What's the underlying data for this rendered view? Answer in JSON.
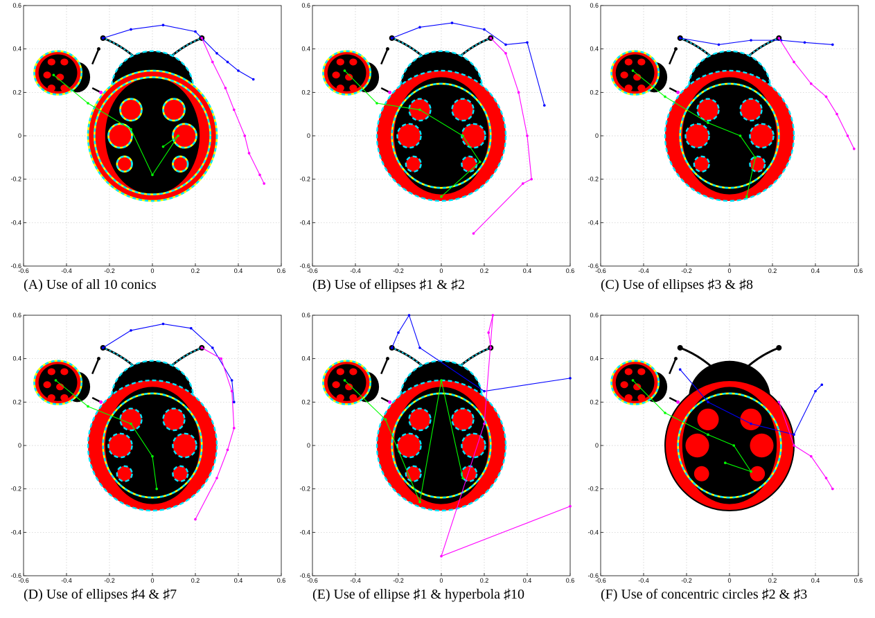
{
  "figure": {
    "panels": [
      {
        "caption": "(A) Use of all 10 conics",
        "variant": "A"
      },
      {
        "caption": "(B) Use of ellipses ♯1 & ♯2",
        "variant": "B"
      },
      {
        "caption": "(C) Use of ellipses ♯3 & ♯8",
        "variant": "C"
      },
      {
        "caption": "(D) Use of ellipses ♯4 & ♯7",
        "variant": "D"
      },
      {
        "caption": "(E) Use of ellipse ♯1 & hyperbola ♯10",
        "variant": "E"
      },
      {
        "caption": "(F) Use of concentric circles ♯2 & ♯3",
        "variant": "F"
      }
    ],
    "colors": {
      "body": "#000000",
      "shell": "#ff0000",
      "conic_yellow": "#ffff00",
      "conic_cyan": "#00e5ff",
      "traj_blue": "#0000ff",
      "traj_magenta": "#ff00ff",
      "traj_green": "#00ff00",
      "grid": "#c8c8c8"
    }
  },
  "chart_data": [
    {
      "type": "scatter",
      "title": "",
      "xlim": [
        -0.6,
        0.6
      ],
      "ylim": [
        -0.6,
        0.6
      ],
      "xticks": [
        "-0.6",
        "-0.4",
        "-0.2",
        "0",
        "0.2",
        "0.4",
        "0.6"
      ],
      "yticks": [
        "-0.6",
        "-0.4",
        "-0.2",
        "0",
        "0.2",
        "0.4",
        "0.6"
      ],
      "grid": true,
      "series": [
        {
          "color": "#0000ff",
          "x": [
            -0.23,
            -0.1,
            0.05,
            0.2,
            0.3,
            0.35,
            0.4,
            0.47
          ],
          "y": [
            0.45,
            0.49,
            0.51,
            0.48,
            0.38,
            0.34,
            0.3,
            0.26
          ]
        },
        {
          "color": "#ff00ff",
          "x": [
            0.23,
            0.28,
            0.34,
            0.38,
            0.43,
            0.45,
            0.5,
            0.52
          ],
          "y": [
            0.45,
            0.34,
            0.22,
            0.12,
            0.0,
            -0.08,
            -0.18,
            -0.22
          ]
        },
        {
          "color": "#00ff00",
          "x": [
            -0.46,
            -0.3,
            -0.1,
            0.0,
            0.12,
            0.05
          ],
          "y": [
            0.28,
            0.15,
            0.03,
            -0.18,
            0.0,
            -0.05
          ]
        }
      ]
    },
    {
      "type": "scatter",
      "title": "",
      "xlim": [
        -0.6,
        0.6
      ],
      "ylim": [
        -0.6,
        0.6
      ],
      "xticks": [
        "-0.6",
        "-0.4",
        "-0.2",
        "0",
        "0.2",
        "0.4",
        "0.6"
      ],
      "yticks": [
        "-0.6",
        "-0.4",
        "-0.2",
        "0",
        "0.2",
        "0.4",
        "0.6"
      ],
      "grid": true,
      "series": [
        {
          "color": "#0000ff",
          "x": [
            -0.23,
            -0.1,
            0.05,
            0.2,
            0.3,
            0.4,
            0.48
          ],
          "y": [
            0.45,
            0.5,
            0.52,
            0.49,
            0.42,
            0.43,
            0.14
          ]
        },
        {
          "color": "#ff00ff",
          "x": [
            0.23,
            0.3,
            0.36,
            0.4,
            0.42,
            0.38,
            0.15
          ],
          "y": [
            0.45,
            0.38,
            0.2,
            0.0,
            -0.2,
            -0.22,
            -0.45
          ]
        },
        {
          "color": "#00ff00",
          "x": [
            -0.45,
            -0.3,
            -0.1,
            0.1,
            0.18,
            0.0
          ],
          "y": [
            0.3,
            0.15,
            0.12,
            0.0,
            -0.12,
            -0.28
          ]
        }
      ]
    },
    {
      "type": "scatter",
      "title": "",
      "xlim": [
        -0.6,
        0.6
      ],
      "ylim": [
        -0.6,
        0.6
      ],
      "xticks": [
        "-0.6",
        "-0.4",
        "-0.2",
        "0",
        "0.2",
        "0.4",
        "0.6"
      ],
      "yticks": [
        "-0.6",
        "-0.4",
        "-0.2",
        "0",
        "0.2",
        "0.4",
        "0.6"
      ],
      "grid": true,
      "series": [
        {
          "color": "#0000ff",
          "x": [
            -0.23,
            -0.05,
            0.1,
            0.24,
            0.35,
            0.48
          ],
          "y": [
            0.45,
            0.42,
            0.44,
            0.44,
            0.43,
            0.42
          ]
        },
        {
          "color": "#ff00ff",
          "x": [
            0.23,
            0.3,
            0.38,
            0.45,
            0.5,
            0.55,
            0.58
          ],
          "y": [
            0.45,
            0.34,
            0.24,
            0.18,
            0.1,
            0.0,
            -0.06
          ]
        },
        {
          "color": "#00ff00",
          "x": [
            -0.45,
            -0.3,
            -0.1,
            0.05,
            0.12,
            0.08
          ],
          "y": [
            0.3,
            0.18,
            0.06,
            0.0,
            -0.1,
            -0.28
          ]
        }
      ]
    },
    {
      "type": "scatter",
      "title": "",
      "xlim": [
        -0.6,
        0.6
      ],
      "ylim": [
        -0.6,
        0.6
      ],
      "xticks": [
        "-0.6",
        "-0.4",
        "-0.2",
        "0",
        "0.2",
        "0.4",
        "0.6"
      ],
      "yticks": [
        "-0.6",
        "-0.4",
        "-0.2",
        "0",
        "0.2",
        "0.4",
        "0.6"
      ],
      "grid": true,
      "series": [
        {
          "color": "#0000ff",
          "x": [
            -0.23,
            -0.1,
            0.05,
            0.18,
            0.28,
            0.37,
            0.38
          ],
          "y": [
            0.45,
            0.53,
            0.56,
            0.54,
            0.45,
            0.3,
            0.2
          ]
        },
        {
          "color": "#ff00ff",
          "x": [
            0.23,
            0.32,
            0.37,
            0.38,
            0.35,
            0.3,
            0.2
          ],
          "y": [
            0.45,
            0.4,
            0.25,
            0.08,
            -0.02,
            -0.15,
            -0.34
          ]
        },
        {
          "color": "#00ff00",
          "x": [
            -0.45,
            -0.3,
            -0.1,
            0.0,
            0.02
          ],
          "y": [
            0.3,
            0.18,
            0.1,
            -0.05,
            -0.2
          ]
        }
      ]
    },
    {
      "type": "scatter",
      "title": "",
      "xlim": [
        -0.6,
        0.6
      ],
      "ylim": [
        -0.6,
        0.6
      ],
      "xticks": [
        "-0.6",
        "-0.4",
        "-0.2",
        "0",
        "0.2",
        "0.4",
        "0.6"
      ],
      "yticks": [
        "-0.6",
        "-0.4",
        "-0.2",
        "0",
        "0.2",
        "0.4",
        "0.6"
      ],
      "grid": true,
      "series": [
        {
          "color": "#0000ff",
          "x": [
            -0.23,
            -0.2,
            -0.15,
            -0.1,
            0.2,
            0.6
          ],
          "y": [
            0.45,
            0.52,
            0.6,
            0.45,
            0.25,
            0.31
          ]
        },
        {
          "color": "#ff00ff",
          "x": [
            0.23,
            0.22,
            0.24,
            0.2,
            0.0,
            0.6
          ],
          "y": [
            0.45,
            0.52,
            0.6,
            0.1,
            -0.51,
            -0.28
          ]
        },
        {
          "color": "#00ff00",
          "x": [
            -0.45,
            -0.26,
            -0.1,
            0.0,
            0.1
          ],
          "y": [
            0.3,
            0.12,
            -0.26,
            0.3,
            -0.15
          ]
        }
      ]
    },
    {
      "type": "scatter",
      "title": "",
      "xlim": [
        -0.6,
        0.6
      ],
      "ylim": [
        -0.6,
        0.6
      ],
      "xticks": [
        "-0.6",
        "-0.4",
        "-0.2",
        "0",
        "0.2",
        "0.4",
        "0.6"
      ],
      "yticks": [
        "-0.6",
        "-0.4",
        "-0.2",
        "0",
        "0.2",
        "0.4",
        "0.6"
      ],
      "grid": true,
      "series": [
        {
          "color": "#0000ff",
          "x": [
            -0.23,
            -0.1,
            0.1,
            0.3,
            0.4,
            0.43
          ],
          "y": [
            0.35,
            0.2,
            0.1,
            0.05,
            0.25,
            0.28
          ]
        },
        {
          "color": "#ff00ff",
          "x": [
            0.23,
            0.3,
            0.38,
            0.45,
            0.48
          ],
          "y": [
            0.2,
            0.0,
            -0.05,
            -0.15,
            -0.2
          ]
        },
        {
          "color": "#00ff00",
          "x": [
            -0.45,
            -0.3,
            -0.1,
            0.02,
            0.1,
            -0.02
          ],
          "y": [
            0.3,
            0.15,
            0.05,
            0.0,
            -0.12,
            -0.08
          ]
        }
      ]
    }
  ]
}
